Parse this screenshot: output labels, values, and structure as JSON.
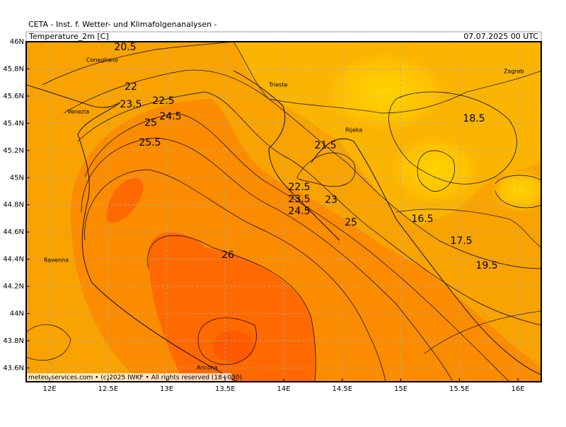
{
  "header": {
    "institute": "CETA - Inst. f. Wetter- und Klimafolgenanalysen -",
    "parameter": "Temperature_2m [C]",
    "valid_time": "07.07.2025 00 UTC"
  },
  "lat_ticks": [
    "46N",
    "45.8N",
    "45.6N",
    "45.4N",
    "45.2N",
    "45N",
    "44.8N",
    "44.6N",
    "44.4N",
    "44.2N",
    "44N",
    "43.8N",
    "43.6N"
  ],
  "lon_ticks": [
    "12E",
    "12.5E",
    "13E",
    "13.5E",
    "14E",
    "14.5E",
    "15E",
    "15.5E",
    "16E"
  ],
  "contour_labels": [
    20.5,
    22,
    22.5,
    23.5,
    24.5,
    25,
    25.5,
    21.5,
    22.5,
    23.5,
    23,
    24.5,
    25,
    26,
    18.5,
    16.5,
    17.5,
    19.5
  ],
  "cities": [
    "Conegliano",
    "Venezia",
    "Trieste",
    "Rijeka",
    "Zagreb",
    "Ravenna",
    "Ancona"
  ],
  "footer": "meteo-services.com • (c)2025 IWKF • All rights reserved (18+030)"
}
